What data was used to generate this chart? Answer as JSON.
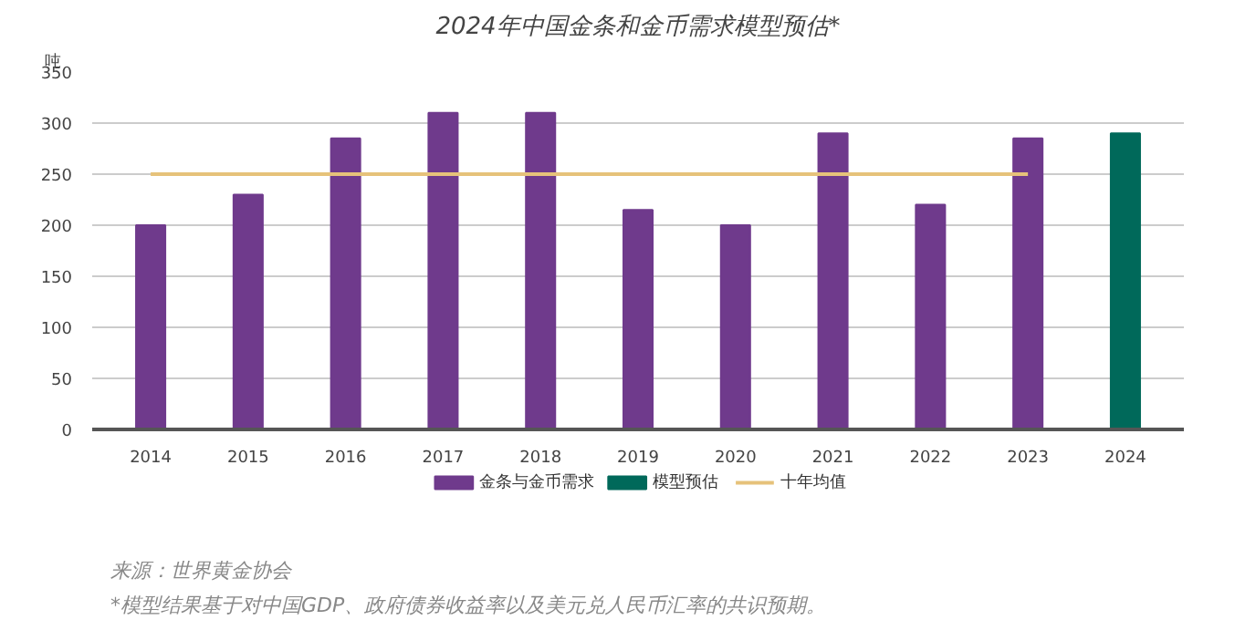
{
  "chart_data": {
    "type": "bar",
    "title": "2024年中国金条和金币需求模型预估*",
    "ylabel": "吨",
    "categories": [
      "2014",
      "2015",
      "2016",
      "2017",
      "2018",
      "2019",
      "2020",
      "2021",
      "2022",
      "2023",
      "2024"
    ],
    "series": [
      {
        "name": "金条与金币需求",
        "color": "#6f3a8c",
        "values": [
          200,
          230,
          285,
          310,
          310,
          215,
          200,
          290,
          220,
          285,
          null
        ]
      },
      {
        "name": "模型预估",
        "color": "#00695a",
        "values": [
          null,
          null,
          null,
          null,
          null,
          null,
          null,
          null,
          null,
          null,
          290
        ]
      },
      {
        "name": "十年均值",
        "type": "line",
        "color": "#e6c27a",
        "values": [
          250,
          250,
          250,
          250,
          250,
          250,
          250,
          250,
          250,
          250,
          null
        ]
      }
    ],
    "ylim": [
      0,
      350
    ],
    "yticks": [
      0,
      50,
      100,
      150,
      200,
      250,
      300,
      350
    ],
    "grid": "y",
    "legend": "bottom",
    "annotations": [
      "来源：世界黄金协会",
      "*模型结果基于对中国GDP、政府债券收益率以及美元兑人民币汇率的共识预期。"
    ]
  }
}
